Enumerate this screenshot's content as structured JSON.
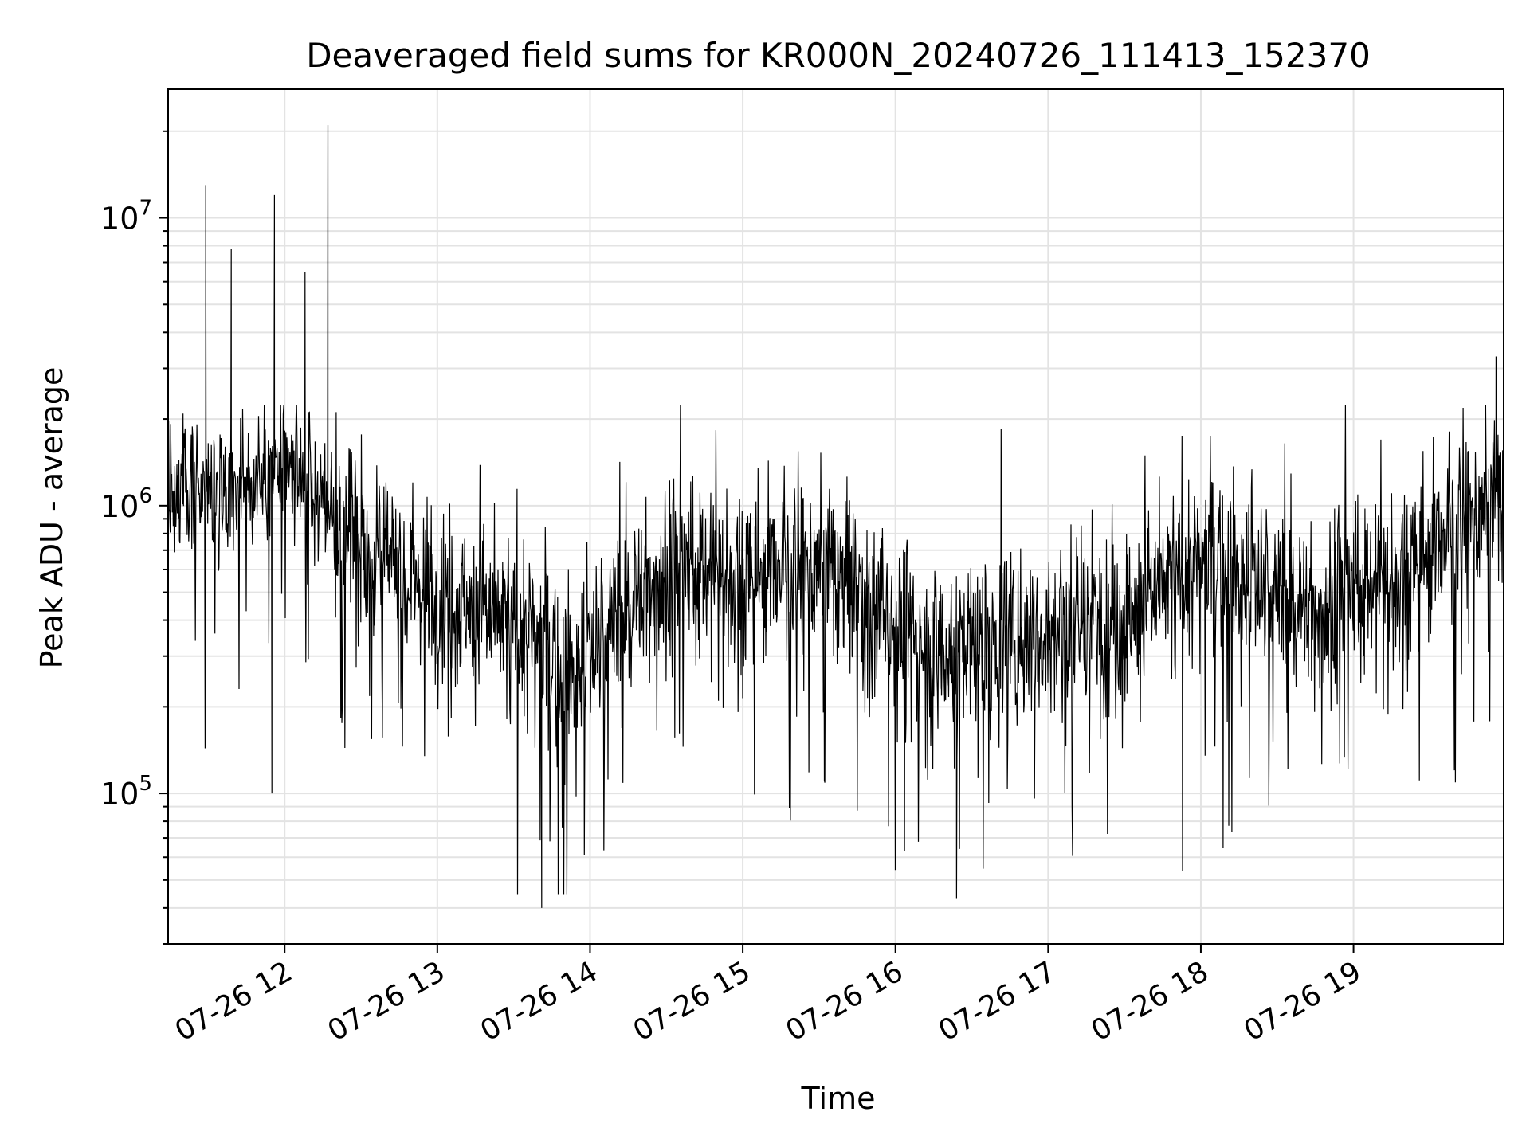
{
  "chart_data": {
    "type": "line",
    "title": "Deaveraged field sums for KR000N_20240726_111413_152370",
    "xlabel": "Time",
    "ylabel": "Peak ADU - average",
    "x_range": [
      "2024-07-26T11:14:13",
      "2024-07-26T19:59:00"
    ],
    "y_range": [
      30000,
      28000000
    ],
    "y_scale": "log",
    "grid": "major and minor (light gray)",
    "x_tick_labels": [
      "07-26 12",
      "07-26 13",
      "07-26 14",
      "07-26 15",
      "07-26 16",
      "07-26 17",
      "07-26 18",
      "07-26 19"
    ],
    "x_tick_times": [
      "2024-07-26T12:00",
      "2024-07-26T13:00",
      "2024-07-26T14:00",
      "2024-07-26T15:00",
      "2024-07-26T16:00",
      "2024-07-26T17:00",
      "2024-07-26T18:00",
      "2024-07-26T19:00"
    ],
    "y_ticks": [
      {
        "value": 100000,
        "base": "10",
        "exp": "5"
      },
      {
        "value": 1000000,
        "base": "10",
        "exp": "6"
      },
      {
        "value": 10000000,
        "base": "10",
        "exp": "7"
      }
    ],
    "line_color": "#000000",
    "series_note_spikes": [
      {
        "t": "2024-07-26T11:29",
        "y": 13000000
      },
      {
        "t": "2024-07-26T11:39",
        "y": 7800000
      },
      {
        "t": "2024-07-26T11:56",
        "y": 12000000
      },
      {
        "t": "2024-07-26T12:08",
        "y": 6500000
      },
      {
        "t": "2024-07-26T12:17",
        "y": 21000000
      },
      {
        "t": "2024-07-26T11:55",
        "y": 100000
      },
      {
        "t": "2024-07-26T13:41",
        "y": 40000
      },
      {
        "t": "2024-07-26T16:24",
        "y": 43000
      },
      {
        "t": "2024-07-26T19:56",
        "y": 3300000
      }
    ]
  }
}
